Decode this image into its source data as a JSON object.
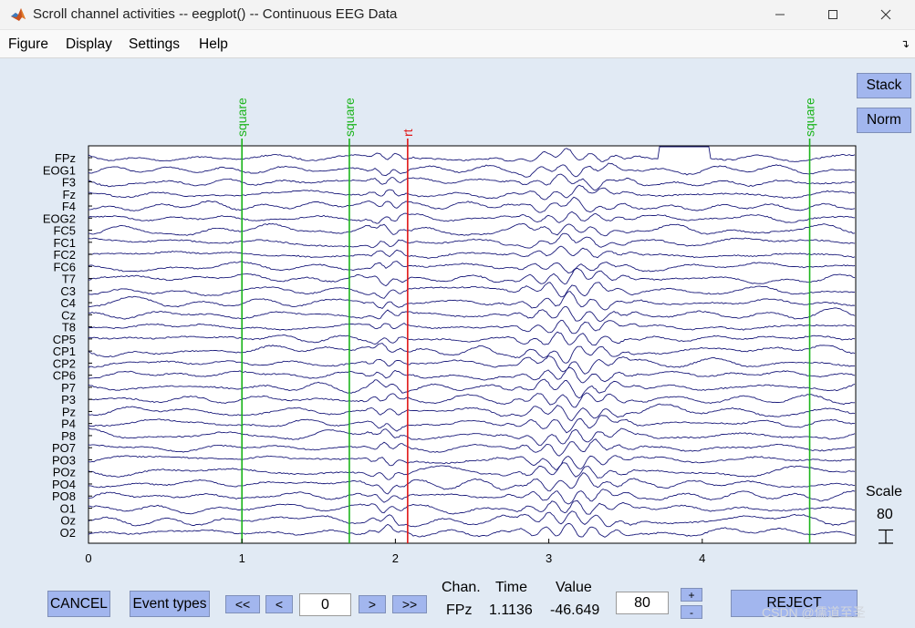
{
  "window": {
    "title": "Scroll channel activities -- eegplot() -- Continuous EEG Data",
    "icon": "matlab-logo-icon"
  },
  "menu": [
    "Figure",
    "Display",
    "Settings",
    "Help"
  ],
  "side_buttons": {
    "stack": "Stack",
    "norm": "Norm"
  },
  "scale": {
    "label": "Scale",
    "value": "80"
  },
  "bottom": {
    "cancel": "CANCEL",
    "event_types": "Event types",
    "prev_page": "<<",
    "prev": "<",
    "position": "0",
    "next": ">",
    "next_page": ">>",
    "chan_label": "Chan.",
    "time_label": "Time",
    "value_label": "Value",
    "chan_value": "FPz",
    "time_value": "1.1136",
    "value_value": "-46.649",
    "scale_box": "80",
    "plus": "+",
    "minus": "-",
    "reject": "REJECT",
    "watermark": "CSDN @儒道至圣"
  },
  "chart_data": {
    "type": "line",
    "xlim": [
      0,
      5
    ],
    "xticks": [
      "0",
      "1",
      "2",
      "3",
      "4"
    ],
    "trace_color": "#1a1a7a",
    "channels": [
      "FPz",
      "EOG1",
      "F3",
      "Fz",
      "F4",
      "EOG2",
      "FC5",
      "FC1",
      "FC2",
      "FC6",
      "T7",
      "C3",
      "C4",
      "Cz",
      "T8",
      "CP5",
      "CP1",
      "CP2",
      "CP6",
      "P7",
      "P3",
      "Pz",
      "P4",
      "P8",
      "PO7",
      "PO3",
      "POz",
      "PO4",
      "PO8",
      "O1",
      "Oz",
      "O2"
    ],
    "events": [
      {
        "time": 1.0,
        "label": "square",
        "color": "#1bb41b"
      },
      {
        "time": 1.7,
        "label": "square",
        "color": "#1bb41b"
      },
      {
        "time": 2.08,
        "label": "rt",
        "color": "#e01818"
      },
      {
        "time": 4.7,
        "label": "square",
        "color": "#1bb41b"
      }
    ]
  }
}
